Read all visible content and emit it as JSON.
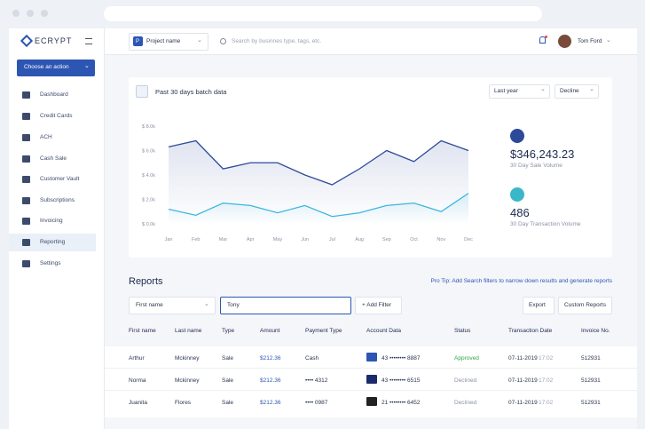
{
  "sidebar": {
    "logo": "ECRYPT",
    "action_button": "Choose an action",
    "menu": [
      "Dashboard",
      "Credit Cards",
      "ACH",
      "Cash Sale",
      "Customer Vault",
      "Subscriptions",
      "Invoicing",
      "Reporting",
      "Settings"
    ],
    "active": 7
  },
  "header": {
    "project": {
      "badge": "P",
      "name": "Project name"
    },
    "search_placeholder": "Search by businnes type, tags, etc.",
    "user": "Tom Ford"
  },
  "batch": {
    "title": "Past 30 days batch data",
    "filters": [
      "Last year",
      "Decline"
    ],
    "chart_data": {
      "type": "line",
      "categories": [
        "Jan",
        "Feb",
        "Mar",
        "Apr",
        "May",
        "Jun",
        "Jul",
        "Aug",
        "Sep",
        "Oct",
        "Nov",
        "Dec"
      ],
      "series": [
        {
          "color": "#2d4a9a",
          "values": [
            6300,
            6800,
            4500,
            5000,
            5000,
            4000,
            3200,
            4500,
            6000,
            5100,
            6800,
            6000
          ]
        },
        {
          "color": "#3ab7e0",
          "values": [
            1200,
            700,
            1700,
            1500,
            900,
            1500,
            600,
            900,
            1500,
            1700,
            1000,
            2500
          ]
        }
      ],
      "ylim": [
        0,
        8000
      ],
      "yticks": [
        {
          "value": 0,
          "label": "$ 0.0k"
        },
        {
          "value": 2000,
          "label": "$ 2.0k"
        },
        {
          "value": 4000,
          "label": "$ 4.0k"
        },
        {
          "value": 6000,
          "label": "$ 6.0k"
        },
        {
          "value": 8000,
          "label": "$ 8.0k"
        }
      ]
    },
    "stats": [
      {
        "value": "$346,243.23",
        "label": "30 Day Sale Volume"
      },
      {
        "value": "486",
        "label": "30 Day Transaction Volume"
      }
    ]
  },
  "reports": {
    "title": "Reports",
    "pro_tip": "Pro Tip: Add Search filters to narrow down results and generate reports",
    "filter_field": "First name",
    "filter_value": "Tony",
    "add_filter": "+ Add Filter",
    "buttons": [
      "Export",
      "Custom Reports"
    ],
    "columns": [
      "First name",
      "Last name",
      "Type",
      "Amount",
      "Payment Type",
      "Account Data",
      "Status",
      "Transaction Date",
      "Invoice No."
    ],
    "rows": [
      [
        "Arthur",
        "Mckinney",
        "Sale",
        "$212.36",
        "Cash",
        "43 •••••••• 8887",
        "Approved",
        "07-11-2019",
        "17:02",
        "512931"
      ],
      [
        "Norma",
        "Mckinney",
        "Sale",
        "$212.36",
        "•••• 4312",
        "43 •••••••• 6515",
        "Declined",
        "07-11-2019",
        "17:02",
        "512931"
      ],
      [
        "Juanita",
        "Flores",
        "Sale",
        "$212.36",
        "•••• 0987",
        "21 •••••••• 6452",
        "Declined",
        "07-11-2019",
        "17:02",
        "512931"
      ]
    ]
  }
}
